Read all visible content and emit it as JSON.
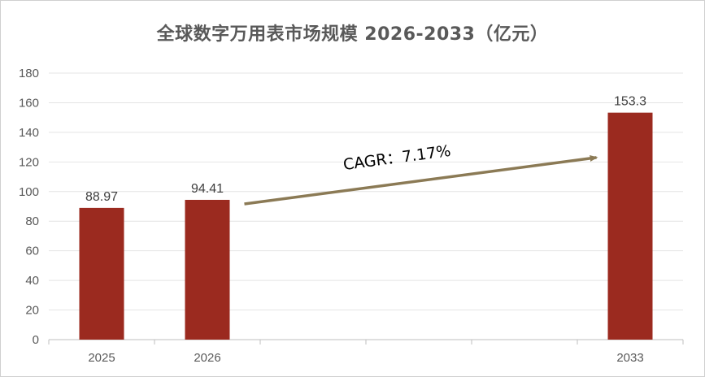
{
  "chart_data": {
    "type": "bar",
    "title": "全球数字万用表市场规模 2026-2033（亿元）",
    "categories": [
      "2025",
      "2026",
      "",
      "",
      "",
      "2033"
    ],
    "values": [
      88.97,
      94.41,
      null,
      null,
      null,
      153.3
    ],
    "data_labels": [
      "88.97",
      "94.41",
      "",
      "",
      "",
      "153.3"
    ],
    "ylim": [
      0,
      180
    ],
    "yticks": [
      "0",
      "20",
      "40",
      "60",
      "80",
      "100",
      "120",
      "140",
      "160",
      "180"
    ],
    "grid": true,
    "bar_color": "#9b2a1f",
    "annotation": {
      "text": "CAGR：7.17%",
      "arrow_from": "2026",
      "arrow_to": "2033",
      "color": "#8b7a55"
    }
  }
}
